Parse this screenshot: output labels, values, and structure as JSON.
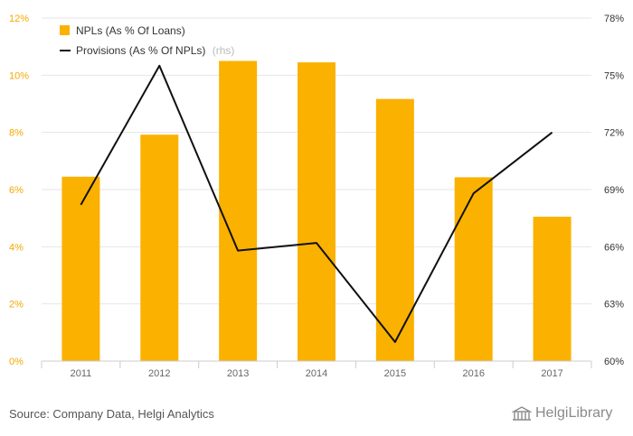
{
  "chart_data": {
    "type": "bar",
    "categories": [
      "2011",
      "2012",
      "2013",
      "2014",
      "2015",
      "2016",
      "2017"
    ],
    "series": [
      {
        "name": "NPLs (As % Of Loans)",
        "type": "bar",
        "axis": "left",
        "color": "#FBB100",
        "values": [
          6.45,
          7.92,
          10.5,
          10.45,
          9.17,
          6.43,
          5.05
        ]
      },
      {
        "name": "Provisions (As % Of NPLs)",
        "type": "line",
        "axis": "right",
        "color": "#111111",
        "values": [
          68.2,
          75.5,
          65.8,
          66.2,
          61.0,
          68.8,
          72.0
        ]
      }
    ],
    "legend_suffix": "(rhs)",
    "left_axis": {
      "ticks": [
        "0%",
        "2%",
        "4%",
        "6%",
        "8%",
        "10%",
        "12%"
      ],
      "ylim": [
        0,
        12
      ],
      "tick_color": "#F5A800"
    },
    "right_axis": {
      "ticks": [
        "60%",
        "63%",
        "66%",
        "69%",
        "72%",
        "75%",
        "78%"
      ],
      "ylim": [
        60,
        78
      ]
    },
    "grid": true,
    "legend_position": "top-left"
  },
  "footer": {
    "source": "Source: Company Data, Helgi Analytics",
    "logo_text": "HelgiLibrary",
    "logo_icon": "helgi-building-icon"
  }
}
